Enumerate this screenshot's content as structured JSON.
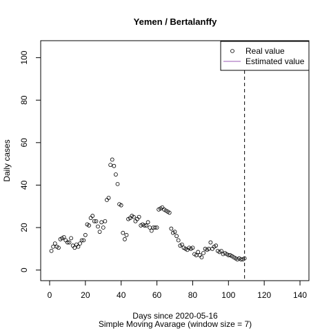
{
  "chart_data": {
    "type": "scatter",
    "title": "Yemen / Bertalanffy",
    "xlabel": "Days since 2020-05-16",
    "sublabel": "Simple Moving Avarage (window size = 7)",
    "ylabel": "Daily cases",
    "xlim": [
      -5,
      145
    ],
    "ylim": [
      -5,
      108
    ],
    "x_ticks": [
      0,
      20,
      40,
      60,
      80,
      100,
      120,
      140
    ],
    "y_ticks": [
      0,
      20,
      40,
      60,
      80,
      100
    ],
    "grid": false,
    "legend_position": "top-right",
    "vline_x": 109,
    "series": [
      {
        "name": "Real value",
        "marker": "open-circle",
        "color": "#000000",
        "x": [
          1,
          2,
          3,
          4,
          5,
          6,
          7,
          8,
          9,
          10,
          11,
          12,
          13,
          14,
          15,
          16,
          17,
          18,
          19,
          20,
          21,
          22,
          23,
          24,
          25,
          26,
          27,
          28,
          29,
          30,
          31,
          32,
          33,
          34,
          35,
          36,
          37,
          38,
          39,
          40,
          41,
          42,
          43,
          44,
          45,
          46,
          47,
          48,
          49,
          50,
          51,
          52,
          53,
          54,
          55,
          56,
          57,
          58,
          59,
          60,
          61,
          62,
          63,
          64,
          65,
          66,
          67,
          68,
          69,
          70,
          71,
          72,
          73,
          74,
          75,
          76,
          77,
          78,
          79,
          80,
          81,
          82,
          83,
          84,
          85,
          86,
          87,
          88,
          89,
          90,
          91,
          92,
          93,
          94,
          95,
          96,
          97,
          98,
          99,
          100,
          101,
          102,
          103,
          104,
          105,
          106,
          107,
          108,
          109
        ],
        "y": [
          9,
          11,
          12.5,
          11,
          10.5,
          14.5,
          15,
          15.5,
          14,
          13,
          13,
          15,
          11.5,
          10.5,
          12,
          11,
          12.5,
          14,
          14,
          16.5,
          21.5,
          21,
          24.5,
          25.5,
          23,
          23,
          20.5,
          18,
          22.5,
          20,
          23,
          33,
          34,
          49.5,
          52,
          49,
          45,
          40.5,
          31,
          30.5,
          17.5,
          14.5,
          16.5,
          24,
          24.5,
          25.5,
          25,
          23,
          24,
          25,
          21,
          21.5,
          21,
          21,
          22.5,
          20,
          18.5,
          20,
          20,
          20,
          28.5,
          29,
          29.5,
          28.5,
          28,
          27.5,
          27,
          19.5,
          17.5,
          18,
          16,
          14,
          11.5,
          12,
          10.5,
          10,
          9.5,
          10.5,
          10,
          10.5,
          7.5,
          7,
          8.5,
          7,
          6,
          8,
          10,
          9.5,
          10,
          13,
          10,
          11,
          11.5,
          9,
          8.5,
          9,
          7.5,
          8,
          7.5,
          7,
          7,
          6.5,
          6,
          5.5,
          5,
          5.5,
          5,
          5,
          5.5
        ]
      },
      {
        "name": "Estimated value",
        "marker": "line",
        "color": "#9b59b6",
        "x": [],
        "y": []
      }
    ]
  }
}
